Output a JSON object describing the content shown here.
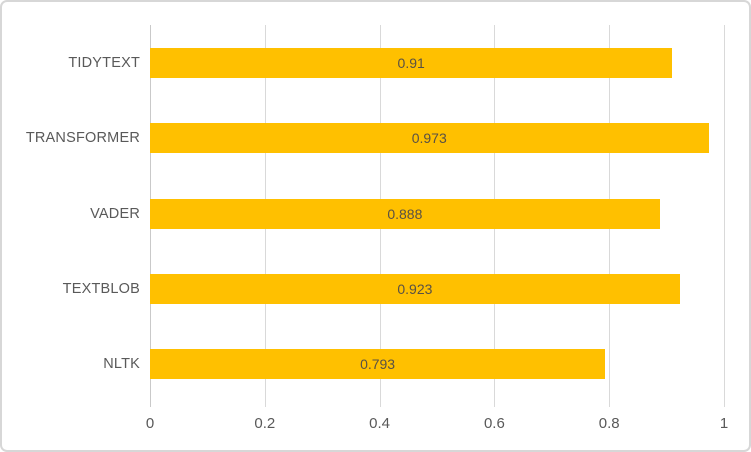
{
  "chart_data": {
    "type": "bar",
    "orientation": "horizontal",
    "title": "",
    "xlabel": "",
    "ylabel": "",
    "categories": [
      "TIDYTEXT",
      "TRANSFORMER",
      "VADER",
      "TEXTBLOB",
      "NLTK"
    ],
    "values": [
      0.91,
      0.973,
      0.888,
      0.923,
      0.793
    ],
    "value_labels": [
      "0.91",
      "0.973",
      "0.888",
      "0.923",
      "0.793"
    ],
    "xlim": [
      0,
      1
    ],
    "x_tick_values": [
      0,
      0.2,
      0.4,
      0.6,
      0.8,
      1
    ],
    "x_tick_labels": [
      "0",
      "0.2",
      "0.4",
      "0.6",
      "0.8",
      "1"
    ],
    "grid": true,
    "legend": null,
    "colors": {
      "bar": "#ffc000",
      "gridline": "#d9d9d9",
      "axis_text": "#595959",
      "data_label_text": "#595145",
      "background": "#ffffff",
      "frame_border": "#d7d7d7"
    }
  }
}
